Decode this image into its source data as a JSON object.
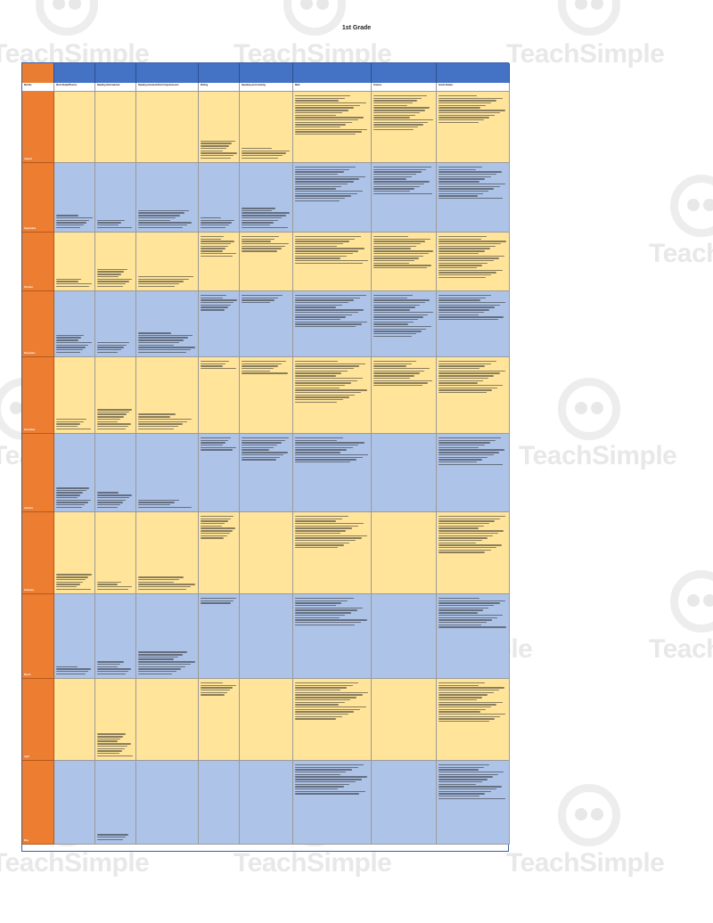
{
  "document": {
    "title": "1st Grade"
  },
  "watermark": {
    "text": "TeachSimple"
  },
  "table": {
    "header_label": "Months",
    "subjects": [
      "Word Study/Phonics",
      "Reading Informational",
      "Reading Literature/Oral Comprehension",
      "Writing",
      "Speaking and Listening",
      "Math",
      "Science",
      "Social Studies"
    ],
    "months": [
      "August",
      "September",
      "October",
      "November",
      "December",
      "January",
      "February",
      "March",
      "April",
      "May"
    ]
  },
  "colors": {
    "header": "#4472c4",
    "month_column": "#ed7d31",
    "row_odd": "#ffe49a",
    "row_even": "#aec3e8"
  }
}
